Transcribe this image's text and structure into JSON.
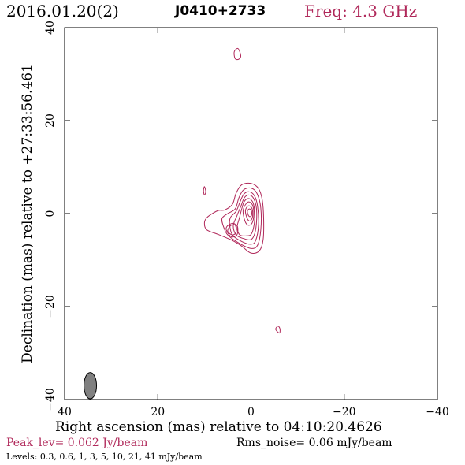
{
  "header": {
    "date": "2016.01.20(2)",
    "source": "J0410+2733",
    "freq": "Freq: 4.3 GHz"
  },
  "footer": {
    "peak": "Peak_lev=  0.062 Jy/beam",
    "rms": "Rms_noise= 0.06 mJy/beam",
    "levels": "Levels: 0.3, 0.6,    1,    3,    5,   10,   21,   41 mJy/beam"
  },
  "colors": {
    "contour": "#b0285a",
    "beam": "#808080",
    "frame": "#000000"
  },
  "chart_data": {
    "type": "contour",
    "xlabel": "Right ascension (mas) relative to 04:10:20.4626",
    "ylabel": "Declination (mas) relative to +27:33:56.461",
    "xlim": [
      40,
      -40
    ],
    "ylim": [
      -40,
      40
    ],
    "xticks": [
      40,
      20,
      0,
      -20,
      -40
    ],
    "yticks": [
      -40,
      -20,
      0,
      20,
      40
    ],
    "xtick_labels": [
      "40",
      "20",
      "0",
      "−20",
      "−40"
    ],
    "ytick_labels": [
      "−40",
      "−20",
      "0",
      "20",
      "40"
    ],
    "levels_mJy": [
      0.3,
      0.6,
      1,
      3,
      5,
      10,
      21,
      41
    ],
    "peak_Jy_per_beam": 0.062,
    "rms_mJy_per_beam": 0.06,
    "beam": {
      "x": 34.5,
      "y": -37,
      "major": 4.2,
      "minor": 2.0,
      "pa_deg": 0
    },
    "contours": [
      {
        "level_index": 0,
        "points": [
          [
            10,
            -2
          ],
          [
            9.5,
            -3.5
          ],
          [
            7,
            -4.5
          ],
          [
            4,
            -5.8
          ],
          [
            2,
            -7
          ],
          [
            0,
            -8.5
          ],
          [
            -1.8,
            -8
          ],
          [
            -2.6,
            -5.6
          ],
          [
            -2.7,
            -1
          ],
          [
            -2.4,
            3
          ],
          [
            -1.6,
            5.4
          ],
          [
            0,
            6.5
          ],
          [
            2,
            6.2
          ],
          [
            3.2,
            4.4
          ],
          [
            4,
            2
          ],
          [
            5.6,
            0.8
          ],
          [
            7.2,
            0.6
          ],
          [
            9.4,
            -0.8
          ]
        ]
      },
      {
        "level_index": 1,
        "points": [
          [
            6,
            -2.5
          ],
          [
            5,
            -4.6
          ],
          [
            2.5,
            -6.4
          ],
          [
            0,
            -7.5
          ],
          [
            -1.4,
            -6.8
          ],
          [
            -2.1,
            -3.5
          ],
          [
            -2.1,
            1.2
          ],
          [
            -1.3,
            4.3
          ],
          [
            0,
            5.5
          ],
          [
            1.6,
            5.1
          ],
          [
            2.6,
            3.4
          ],
          [
            3.4,
            1
          ],
          [
            5,
            0
          ],
          [
            6.2,
            -1
          ]
        ]
      },
      {
        "level_index": 2,
        "points": [
          [
            4.6,
            -2.3
          ],
          [
            4,
            -4.6
          ],
          [
            2,
            -6
          ],
          [
            0,
            -6.6
          ],
          [
            -1,
            -5.8
          ],
          [
            -1.6,
            -2.5
          ],
          [
            -1.4,
            1.6
          ],
          [
            -0.7,
            3.9
          ],
          [
            0.5,
            4.7
          ],
          [
            1.6,
            4.1
          ],
          [
            2.4,
            2.4
          ],
          [
            3.2,
            0.5
          ],
          [
            4.4,
            -0.8
          ]
        ]
      },
      {
        "level_index": 3,
        "points": [
          [
            3.8,
            -2.6
          ],
          [
            3.2,
            -4.6
          ],
          [
            1.5,
            -5.4
          ],
          [
            0,
            -5.6
          ],
          [
            -0.8,
            -4.3
          ],
          [
            -1.2,
            -1.5
          ],
          [
            -1.1,
            1.6
          ],
          [
            -0.4,
            3.5
          ],
          [
            0.6,
            4
          ],
          [
            1.5,
            3.3
          ],
          [
            2.2,
            1.5
          ],
          [
            3,
            -0.4
          ]
        ]
      },
      {
        "level_index": 4,
        "points": [
          [
            3,
            -3
          ],
          [
            2.4,
            -4.6
          ],
          [
            1,
            -4.8
          ],
          [
            0,
            -4.5
          ],
          [
            -0.6,
            -2.8
          ],
          [
            -0.8,
            -0.5
          ],
          [
            -0.6,
            1.8
          ],
          [
            0,
            3
          ],
          [
            0.8,
            3.2
          ],
          [
            1.5,
            2.5
          ],
          [
            2,
            1
          ],
          [
            2.5,
            -1
          ]
        ]
      },
      {
        "level_index": 5,
        "points": [
          [
            1.7,
            0.6
          ],
          [
            1.3,
            -1.6
          ],
          [
            0.6,
            -2.5
          ],
          [
            -0.2,
            -2.1
          ],
          [
            -0.6,
            -0.3
          ],
          [
            -0.4,
            1.6
          ],
          [
            0.3,
            2.5
          ],
          [
            1,
            2.2
          ]
        ]
      },
      {
        "level_index": 6,
        "points": [
          [
            1.2,
            0.5
          ],
          [
            0.8,
            -1.1
          ],
          [
            0.2,
            -1.6
          ],
          [
            -0.3,
            -0.8
          ],
          [
            -0.3,
            0.8
          ],
          [
            0.2,
            1.6
          ],
          [
            0.8,
            1.5
          ]
        ]
      },
      {
        "level_index": 7,
        "points": [
          [
            0.8,
            0.4
          ],
          [
            0.4,
            -0.6
          ],
          [
            -0.1,
            -0.4
          ],
          [
            -0.1,
            0.6
          ],
          [
            0.4,
            1
          ]
        ]
      },
      {
        "level_index": 4,
        "points": [
          [
            5,
            -3.8
          ],
          [
            4,
            -4.6
          ],
          [
            3.2,
            -4
          ],
          [
            3.4,
            -2.5
          ],
          [
            4.4,
            -2.6
          ]
        ]
      },
      {
        "level_index": 3,
        "points": [
          [
            5.3,
            -3.6
          ],
          [
            4.2,
            -5
          ],
          [
            3,
            -4.5
          ],
          [
            2.9,
            -2.8
          ],
          [
            3.9,
            -2.1
          ],
          [
            5.1,
            -2.7
          ]
        ]
      },
      {
        "level_index": 0,
        "points": [
          [
            2.8,
            35.5
          ],
          [
            2.2,
            34
          ],
          [
            2.6,
            33.2
          ],
          [
            3.4,
            33.3
          ],
          [
            3.6,
            34.8
          ]
        ]
      },
      {
        "level_index": 0,
        "points": [
          [
            10,
            5.8
          ],
          [
            9.7,
            4.7
          ],
          [
            10,
            4
          ],
          [
            10.2,
            4.9
          ]
        ]
      },
      {
        "level_index": 0,
        "points": [
          [
            -5.8,
            -24.2
          ],
          [
            -5.3,
            -24.9
          ],
          [
            -6.1,
            -25.7
          ],
          [
            -6.2,
            -24.8
          ]
        ]
      }
    ]
  }
}
